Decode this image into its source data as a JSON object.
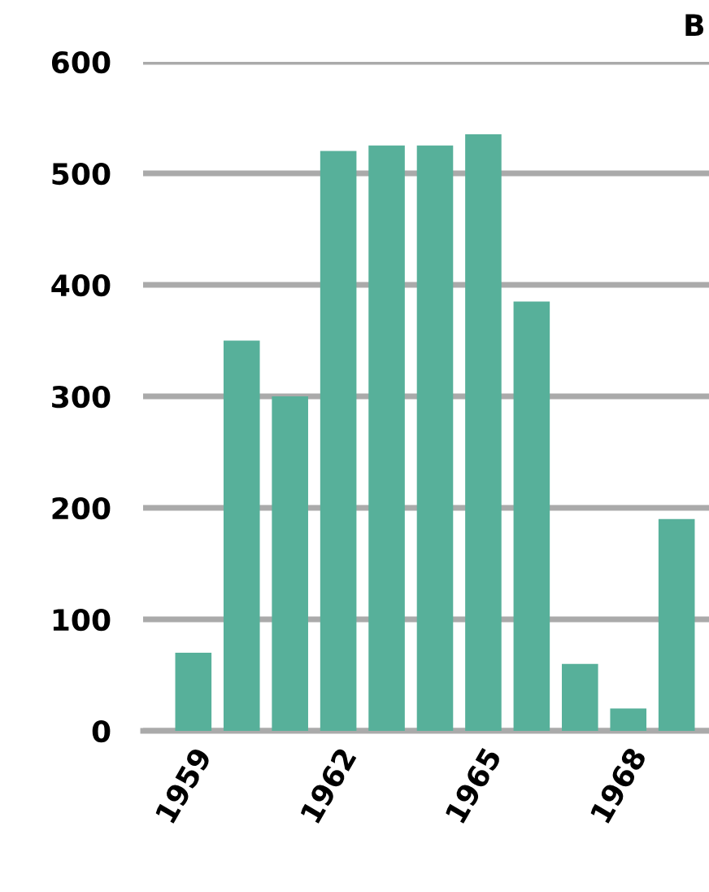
{
  "chart_data": {
    "type": "bar",
    "title": "B",
    "categories": [
      "1959",
      null,
      null,
      "1962",
      null,
      null,
      "1965",
      null,
      null,
      "1968",
      null
    ],
    "values": [
      70,
      350,
      300,
      520,
      525,
      525,
      535,
      385,
      60,
      20,
      190
    ],
    "color": "#57b09a",
    "ylim": [
      0,
      600
    ],
    "yticks": [
      0,
      100,
      200,
      300,
      400,
      500,
      600
    ],
    "grid": "y"
  }
}
